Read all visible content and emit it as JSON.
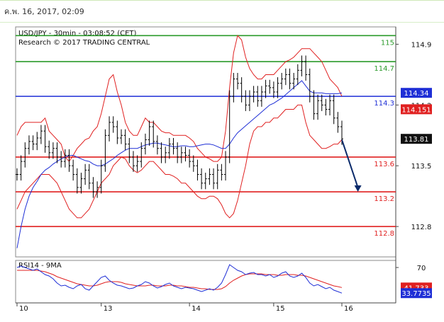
{
  "header": {
    "timestamp": "ค.พ. 16, 2017, 02:09"
  },
  "chart_data": {
    "type": "candlestick",
    "title": "USD/JPY - 30min - 03:08:52 (CET)",
    "subtitle": "Research © 2017 TRADING CENTRAL",
    "x_ticks": [
      "10",
      "13",
      "14",
      "15",
      "16"
    ],
    "y_ticks": [
      "114.9",
      "114.2",
      "113.5",
      "112.8"
    ],
    "ylim": [
      112.45,
      115.1
    ],
    "last_price": "113.81",
    "levels": [
      {
        "label": "115",
        "value": 115.0,
        "color": "#2a9a2a",
        "text_color": "#2a9a2a"
      },
      {
        "label": "114.7",
        "value": 114.7,
        "color": "#2a9a2a",
        "text_color": "#2a9a2a"
      },
      {
        "label": "114.3",
        "value": 114.3,
        "color": "#1f2fd6",
        "text_color": "#1f2fd6"
      },
      {
        "label": "113.6",
        "value": 113.6,
        "color": "#e02020",
        "text_color": "#e02020"
      },
      {
        "label": "113.2",
        "value": 113.2,
        "color": "#e02020",
        "text_color": "#e02020"
      },
      {
        "label": "112.8",
        "value": 112.8,
        "color": "#e02020",
        "text_color": "#e02020"
      }
    ],
    "tags": [
      {
        "label": "114.34",
        "value": 114.34,
        "bg": "#1f2fd6"
      },
      {
        "label": "114.151",
        "value": 114.151,
        "bg": "#e02020"
      }
    ],
    "price_series": [
      113.4,
      113.55,
      113.7,
      113.78,
      113.75,
      113.82,
      113.9,
      113.72,
      113.65,
      113.7,
      113.6,
      113.55,
      113.62,
      113.5,
      113.4,
      113.25,
      113.35,
      113.45,
      113.3,
      113.2,
      113.25,
      113.5,
      113.85,
      114.0,
      113.95,
      113.82,
      113.85,
      113.75,
      113.6,
      113.5,
      113.55,
      113.7,
      113.8,
      113.95,
      113.78,
      113.7,
      113.6,
      113.65,
      113.75,
      113.7,
      113.6,
      113.65,
      113.62,
      113.55,
      113.5,
      113.4,
      113.3,
      113.35,
      113.4,
      113.3,
      113.45,
      113.4,
      113.6,
      114.3,
      114.5,
      114.45,
      114.3,
      114.2,
      114.3,
      114.35,
      114.25,
      114.35,
      114.42,
      114.4,
      114.35,
      114.45,
      114.5,
      114.55,
      114.45,
      114.5,
      114.6,
      114.7,
      114.55,
      114.3,
      114.1,
      114.25,
      114.2,
      114.15,
      114.25,
      114.05,
      113.95,
      113.81
    ],
    "bollinger_upper": [
      113.85,
      113.95,
      114.0,
      114.0,
      114.0,
      114.0,
      114.0,
      114.05,
      113.9,
      113.85,
      113.8,
      113.75,
      113.6,
      113.55,
      113.62,
      113.7,
      113.75,
      113.8,
      113.82,
      113.9,
      113.95,
      114.1,
      114.3,
      114.5,
      114.55,
      114.35,
      114.2,
      114.0,
      113.9,
      113.85,
      113.85,
      113.95,
      114.05,
      114.0,
      114.0,
      113.95,
      113.9,
      113.88,
      113.88,
      113.85,
      113.85,
      113.85,
      113.85,
      113.82,
      113.78,
      113.7,
      113.65,
      113.6,
      113.58,
      113.55,
      113.55,
      113.6,
      113.9,
      114.4,
      114.8,
      115.0,
      114.95,
      114.75,
      114.62,
      114.55,
      114.5,
      114.5,
      114.55,
      114.55,
      114.55,
      114.6,
      114.65,
      114.7,
      114.72,
      114.75,
      114.8,
      114.85,
      114.85,
      114.85,
      114.8,
      114.75,
      114.7,
      114.6,
      114.5,
      114.45,
      114.4,
      114.3
    ],
    "bollinger_lower": [
      113.0,
      113.1,
      113.2,
      113.25,
      113.3,
      113.35,
      113.4,
      113.4,
      113.4,
      113.35,
      113.3,
      113.2,
      113.1,
      113.0,
      112.95,
      112.9,
      112.9,
      112.95,
      113.0,
      113.1,
      113.2,
      113.3,
      113.35,
      113.4,
      113.5,
      113.55,
      113.6,
      113.58,
      113.5,
      113.45,
      113.42,
      113.45,
      113.5,
      113.55,
      113.55,
      113.5,
      113.45,
      113.4,
      113.4,
      113.38,
      113.35,
      113.3,
      113.3,
      113.25,
      113.2,
      113.15,
      113.12,
      113.12,
      113.15,
      113.15,
      113.12,
      113.05,
      112.95,
      112.9,
      112.95,
      113.1,
      113.3,
      113.5,
      113.75,
      113.9,
      113.95,
      113.95,
      114.0,
      114.0,
      114.05,
      114.05,
      114.1,
      114.15,
      114.15,
      114.15,
      114.2,
      114.2,
      114.0,
      113.85,
      113.8,
      113.75,
      113.7,
      113.7,
      113.72,
      113.75,
      113.75,
      113.8
    ],
    "moving_average": [
      112.55,
      112.8,
      113.0,
      113.15,
      113.25,
      113.32,
      113.4,
      113.45,
      113.48,
      113.52,
      113.55,
      113.58,
      113.6,
      113.62,
      113.62,
      113.6,
      113.58,
      113.56,
      113.55,
      113.52,
      113.5,
      113.5,
      113.52,
      113.55,
      113.58,
      113.62,
      113.65,
      113.68,
      113.7,
      113.7,
      113.7,
      113.72,
      113.74,
      113.75,
      113.76,
      113.76,
      113.75,
      113.74,
      113.73,
      113.72,
      113.72,
      113.73,
      113.73,
      113.72,
      113.72,
      113.73,
      113.74,
      113.75,
      113.75,
      113.74,
      113.72,
      113.7,
      113.7,
      113.75,
      113.82,
      113.88,
      113.92,
      113.96,
      114.0,
      114.04,
      114.08,
      114.12,
      114.16,
      114.2,
      114.22,
      114.25,
      114.28,
      114.32,
      114.36,
      114.4,
      114.44,
      114.48,
      114.42,
      114.36,
      114.34,
      114.34,
      114.34,
      114.33,
      114.33,
      114.33,
      114.33,
      114.34
    ],
    "forecast_arrow": {
      "from": [
        81,
        113.8
      ],
      "to": [
        85,
        113.2
      ]
    },
    "rsi": {
      "title": "RSI14 - 9MA",
      "ylim": [
        20,
        80
      ],
      "y_ticks": [
        "70"
      ],
      "tags": [
        {
          "label": "41.733",
          "value": 41.733,
          "bg": "#e02020"
        },
        {
          "label": "33.7735",
          "value": 33.7735,
          "bg": "#1f2fd6"
        }
      ],
      "rsi_series": [
        70,
        72,
        70,
        68,
        66,
        68,
        64,
        60,
        58,
        54,
        48,
        44,
        45,
        42,
        40,
        44,
        46,
        40,
        38,
        44,
        50,
        56,
        58,
        52,
        48,
        45,
        44,
        42,
        40,
        41,
        44,
        46,
        50,
        48,
        44,
        41,
        43,
        46,
        48,
        44,
        42,
        40,
        42,
        41,
        40,
        38,
        36,
        38,
        40,
        38,
        42,
        48,
        60,
        74,
        70,
        66,
        64,
        60,
        62,
        63,
        60,
        60,
        58,
        60,
        56,
        58,
        62,
        64,
        58,
        56,
        58,
        62,
        56,
        48,
        44,
        46,
        43,
        40,
        42,
        38,
        36,
        33.77
      ],
      "ma_series": [
        66,
        66,
        66,
        66,
        66,
        66,
        65,
        64,
        62,
        60,
        57,
        55,
        53,
        51,
        49,
        47,
        46,
        45,
        44,
        44,
        45,
        47,
        49,
        50,
        50,
        50,
        49,
        47,
        46,
        45,
        44,
        44,
        44,
        45,
        45,
        44,
        44,
        44,
        45,
        45,
        44,
        44,
        43,
        42,
        42,
        41,
        40,
        40,
        39,
        39,
        39,
        40,
        43,
        48,
        52,
        55,
        58,
        60,
        61,
        61,
        61,
        61,
        60,
        60,
        60,
        59,
        59,
        60,
        60,
        60,
        59,
        59,
        58,
        56,
        54,
        52,
        50,
        48,
        46,
        44,
        43,
        41.73
      ]
    }
  },
  "colors": {
    "accent": "#2a9a2a",
    "support": "#e02020",
    "pivot": "#1f2fd6",
    "price": "#000000",
    "band": "#e02020",
    "ma": "#1f2fd6"
  }
}
